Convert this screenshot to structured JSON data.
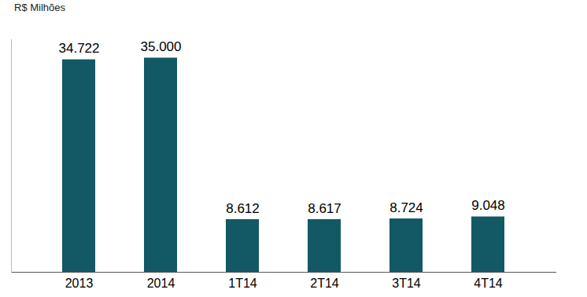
{
  "chart_data": {
    "type": "bar",
    "ylabel": "R$ Milhões",
    "categories": [
      "2013",
      "2014",
      "1T14",
      "2T14",
      "3T14",
      "4T14"
    ],
    "values": [
      34722,
      35000,
      8612,
      8617,
      8724,
      9048
    ],
    "value_labels": [
      "34.722",
      "35.000",
      "8.612",
      "8.617",
      "8.724",
      "9.048"
    ],
    "color": "#135865",
    "ylim": [
      0,
      38000
    ],
    "data_labels": true,
    "tick_labels": "x",
    "grid": false
  }
}
